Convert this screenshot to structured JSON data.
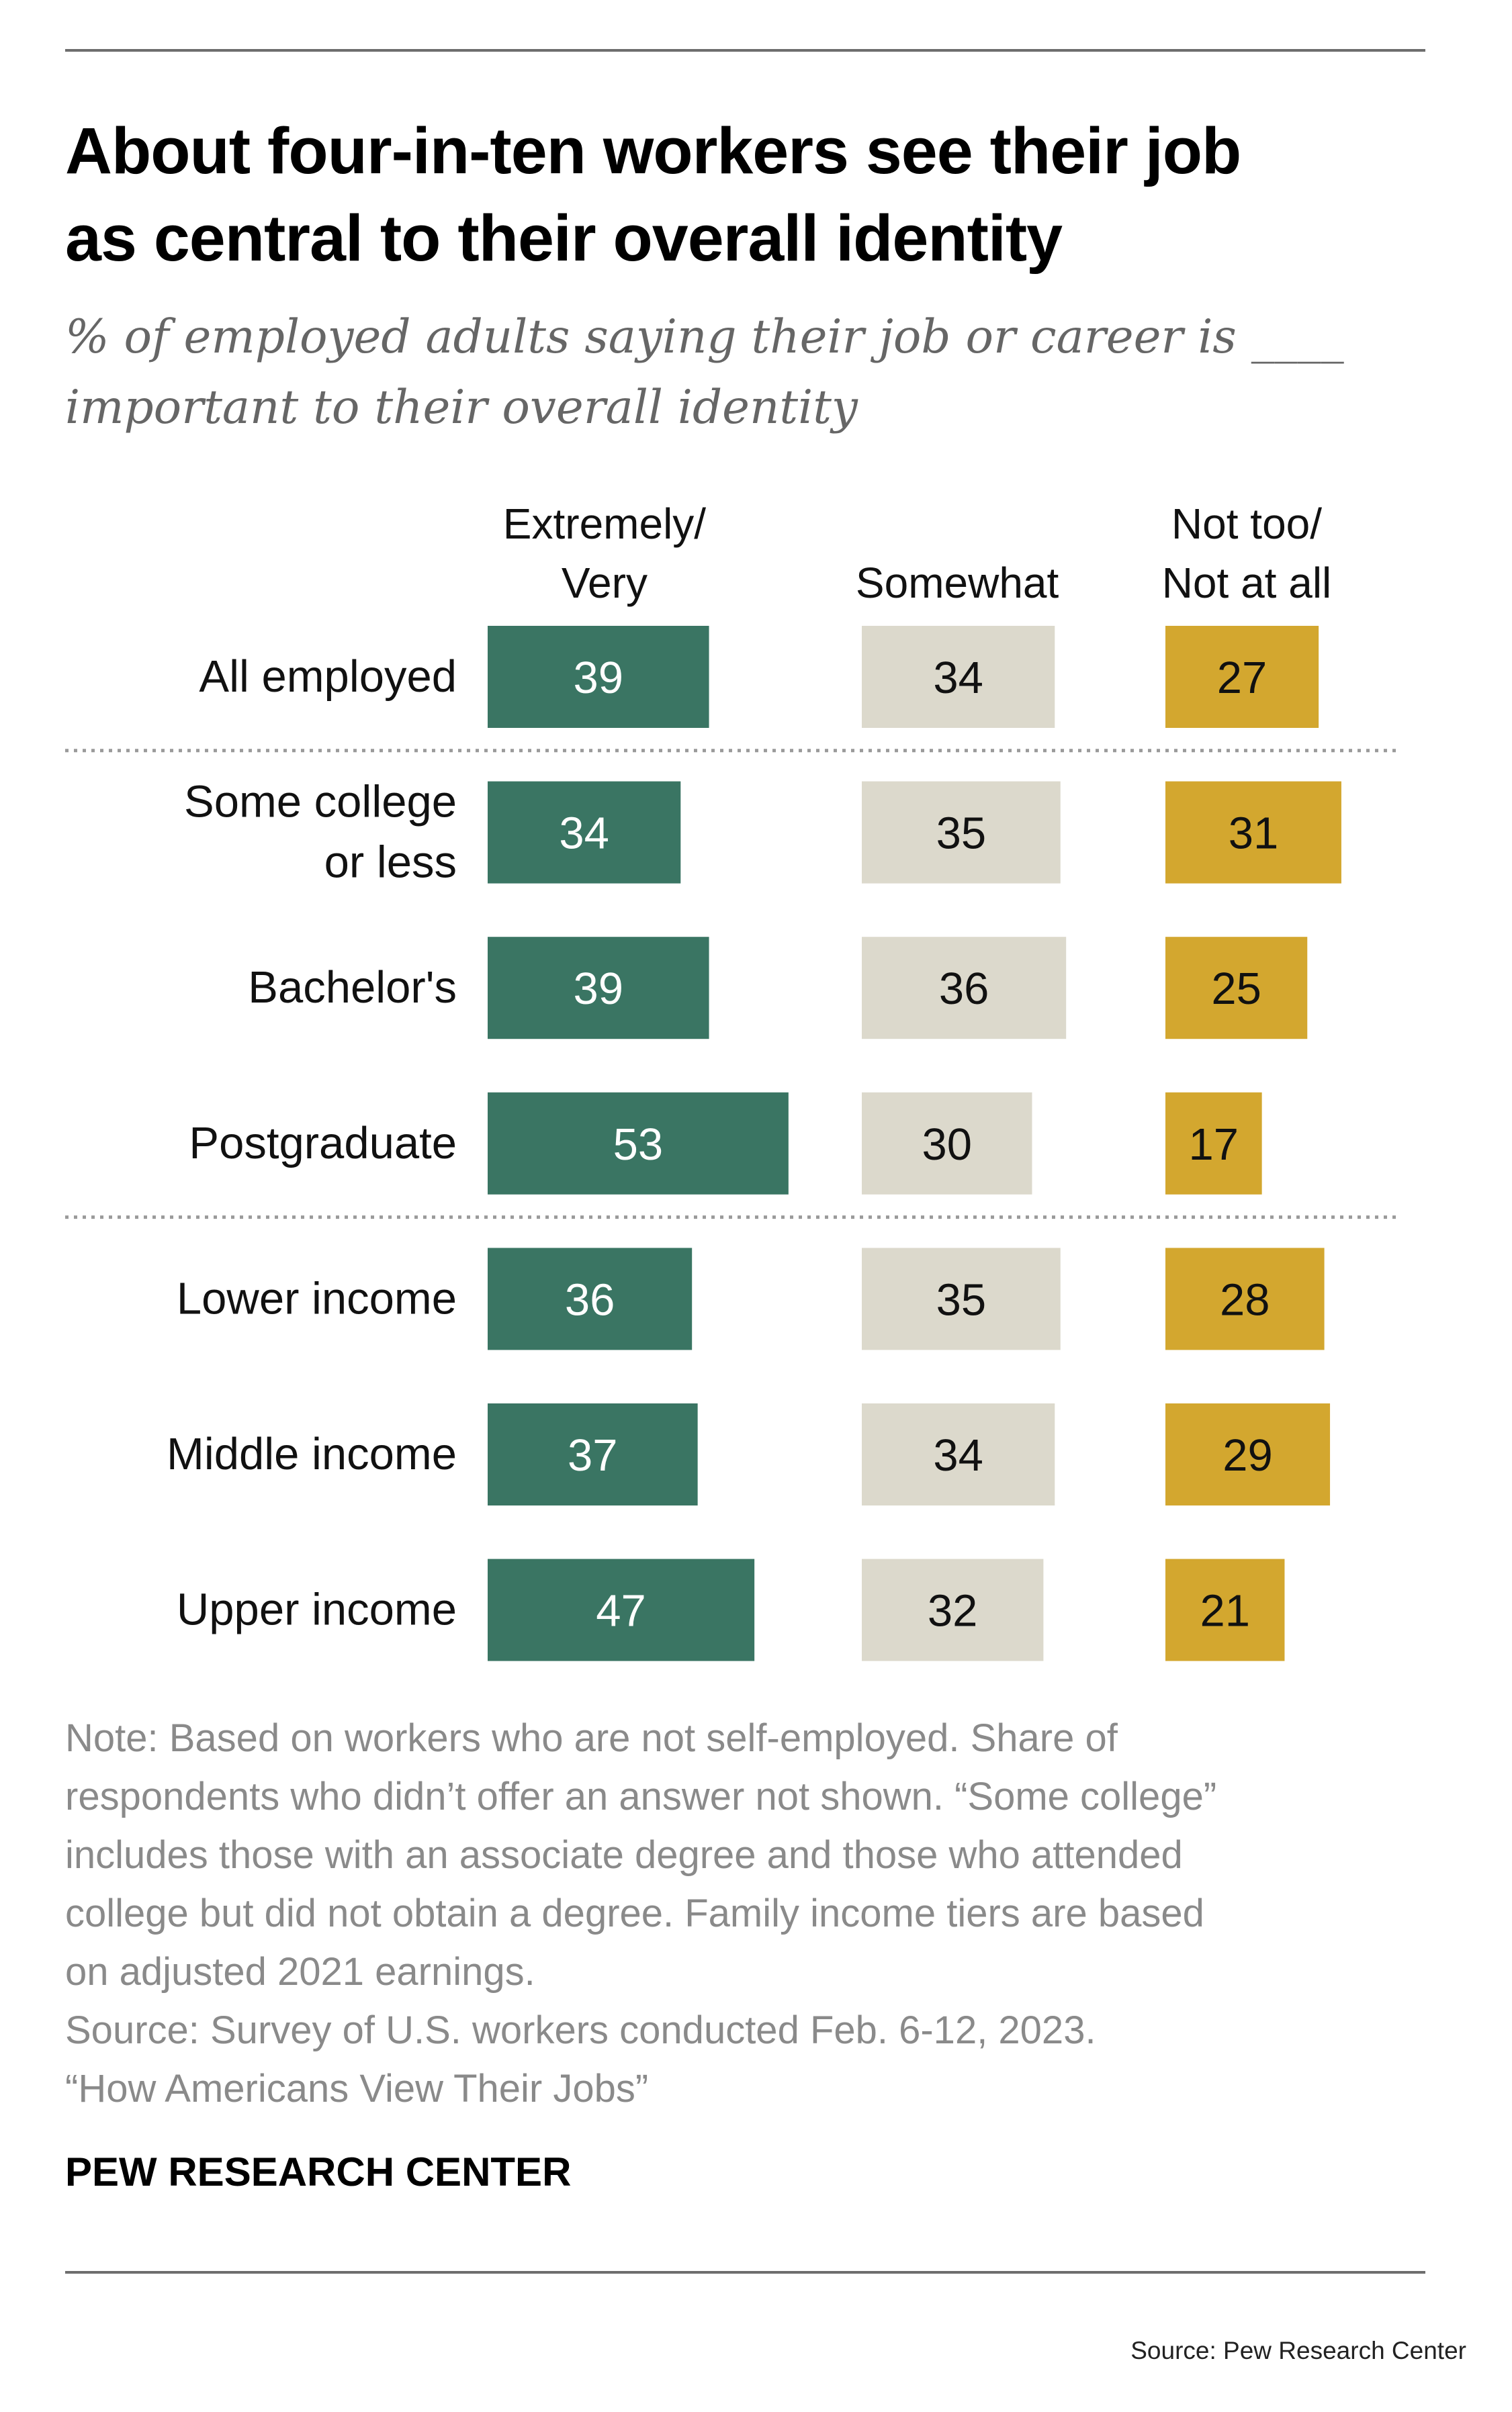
{
  "title_lines": [
    "About four-in-ten workers see their job",
    "as central to their overall identity"
  ],
  "subtitle_lines": [
    "% of employed adults saying their job or career is ____",
    "important to their overall identity"
  ],
  "colors": {
    "extremely_very": "#3a7563",
    "somewhat": "#dcd9cc",
    "not_too": "#d3a72f",
    "separator": "#9a9a9a"
  },
  "chart_data": {
    "type": "bar",
    "layout": "grouped-columns-horizontal",
    "categories": [
      "All employed",
      "Some college or less",
      "Bachelor's",
      "Postgraduate",
      "Lower income",
      "Middle income",
      "Upper income"
    ],
    "category_lines": [
      [
        "All employed"
      ],
      [
        "Some college",
        "or less"
      ],
      [
        "Bachelor's"
      ],
      [
        "Postgraduate"
      ],
      [
        "Lower income"
      ],
      [
        "Middle income"
      ],
      [
        "Upper income"
      ]
    ],
    "series": [
      {
        "name": "Extremely/ Very",
        "header_lines": [
          "Extremely/",
          "Very"
        ],
        "values": [
          39,
          34,
          39,
          53,
          36,
          37,
          47
        ]
      },
      {
        "name": "Somewhat",
        "header_lines": [
          "Somewhat"
        ],
        "values": [
          34,
          35,
          36,
          30,
          35,
          34,
          32
        ]
      },
      {
        "name": "Not too/ Not at all",
        "header_lines": [
          "Not too/",
          "Not at all"
        ],
        "values": [
          27,
          31,
          25,
          17,
          28,
          29,
          21
        ]
      }
    ],
    "group_separators_after": [
      0,
      3
    ],
    "value_labels": "inside",
    "legend": "column headers at top",
    "grid": false
  },
  "note_lines": [
    "Note: Based on workers who are not self-employed. Share of",
    "respondents who didn’t offer an answer not shown. “Some college”",
    "includes those with an associate degree and those who attended",
    "college but did not obtain a degree. Family income tiers are based",
    "on adjusted 2021 earnings.",
    "Source: Survey of U.S. workers conducted Feb. 6-12, 2023.",
    "“How Americans View Their Jobs”"
  ],
  "brand": "PEW RESEARCH CENTER",
  "credit": "Source: Pew Research Center"
}
